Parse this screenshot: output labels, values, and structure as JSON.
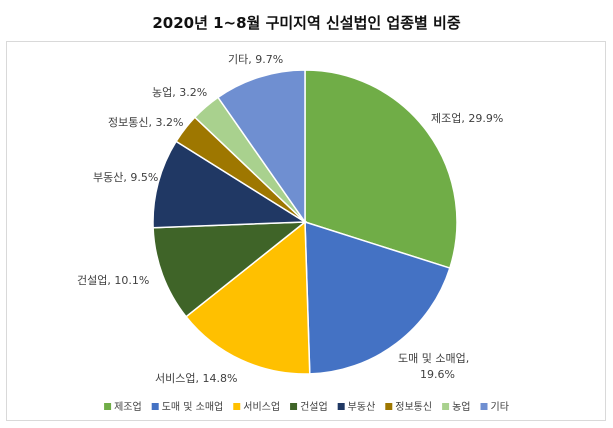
{
  "chart_data": {
    "type": "pie",
    "title": "2020년 1~8월 구미지역 신설법인 업종별 비중",
    "categories": [
      "제조업",
      "도매 및 소매업",
      "서비스업",
      "건설업",
      "부동산",
      "정보통신",
      "농업",
      "기타"
    ],
    "values": [
      29.9,
      19.6,
      14.8,
      10.1,
      9.5,
      3.2,
      3.2,
      9.7
    ],
    "unit": "%",
    "colors": [
      "#70ad47",
      "#4472c4",
      "#ffc000",
      "#3f6428",
      "#203864",
      "#9e7700",
      "#a9d18e",
      "#6f8fd1"
    ],
    "data_labels": [
      [
        "제조업, 29.9%"
      ],
      [
        "도매 및 소매업,",
        "19.6%"
      ],
      [
        "서비스업, 14.8%"
      ],
      [
        "건설업, 10.1%"
      ],
      [
        "부동산, 9.5%"
      ],
      [
        "정보통신, 3.2%"
      ],
      [
        "농업, 3.2%"
      ],
      [
        "기타, 9.7%"
      ]
    ],
    "legend": "bottom",
    "start_angle": "12 o'clock",
    "direction": "clockwise"
  }
}
